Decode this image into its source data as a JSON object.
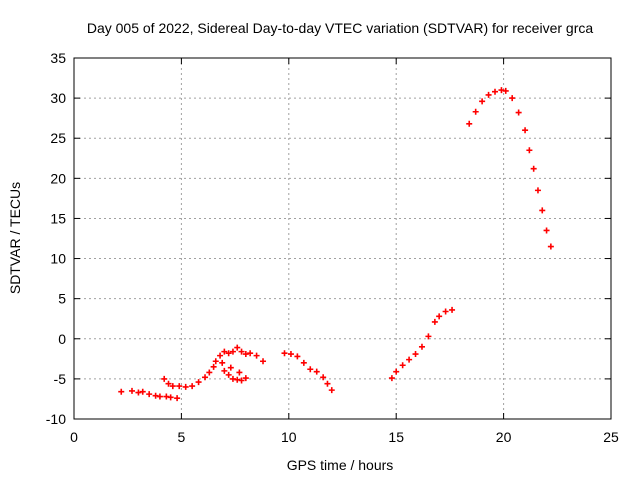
{
  "chart_data": {
    "type": "scatter",
    "title": "Day 005 of 2022, Sidereal Day-to-day VTEC variation (SDTVAR) for receiver grca",
    "xlabel": "GPS time / hours",
    "ylabel": "SDTVAR / TECUs",
    "xlim": [
      0,
      25
    ],
    "ylim": [
      -10,
      35
    ],
    "xticks": [
      0,
      5,
      10,
      15,
      20,
      25
    ],
    "yticks": [
      -10,
      -5,
      0,
      5,
      10,
      15,
      20,
      25,
      30,
      35
    ],
    "grid": true,
    "marker": "+",
    "color": "#ff0000",
    "series": [
      {
        "name": "SDTVAR",
        "x": [
          2.2,
          2.7,
          3.0,
          3.2,
          3.5,
          3.8,
          4.0,
          4.3,
          4.5,
          4.8,
          4.2,
          4.4,
          4.6,
          4.9,
          5.2,
          5.5,
          5.8,
          6.1,
          6.3,
          6.5,
          6.6,
          6.8,
          7.0,
          7.2,
          7.4,
          7.6,
          7.8,
          8.0,
          8.2,
          8.5,
          8.8,
          7.0,
          7.2,
          7.4,
          7.6,
          7.8,
          8.0,
          6.9,
          7.3,
          7.7,
          9.8,
          10.1,
          10.4,
          10.7,
          11.0,
          11.3,
          11.6,
          11.8,
          12.0,
          14.8,
          15.0,
          15.3,
          15.6,
          15.9,
          16.2,
          16.5,
          16.8,
          17.0,
          17.3,
          17.6,
          18.4,
          18.7,
          19.0,
          19.3,
          19.6,
          19.9,
          20.1,
          20.4,
          20.7,
          21.0,
          21.2,
          21.4,
          21.6,
          21.8,
          22.0,
          22.2
        ],
        "values": [
          -6.6,
          -6.5,
          -6.7,
          -6.6,
          -6.9,
          -7.1,
          -7.2,
          -7.2,
          -7.3,
          -7.4,
          -5.0,
          -5.6,
          -5.9,
          -5.9,
          -6.0,
          -5.9,
          -5.4,
          -4.8,
          -4.2,
          -3.5,
          -2.8,
          -2.1,
          -1.6,
          -1.8,
          -1.6,
          -1.1,
          -1.6,
          -1.9,
          -1.8,
          -2.1,
          -2.8,
          -4.0,
          -4.5,
          -5.0,
          -5.1,
          -5.2,
          -4.9,
          -3.0,
          -3.6,
          -4.2,
          -1.8,
          -1.9,
          -2.2,
          -3.0,
          -3.8,
          -4.1,
          -4.8,
          -5.6,
          -6.4,
          -4.9,
          -4.1,
          -3.3,
          -2.6,
          -1.9,
          -1.0,
          0.3,
          2.1,
          2.8,
          3.4,
          3.6,
          26.8,
          28.3,
          29.6,
          30.4,
          30.8,
          31.0,
          30.9,
          30.0,
          28.2,
          26.0,
          23.5,
          21.2,
          18.5,
          16.0,
          13.5,
          11.5
        ]
      }
    ]
  }
}
